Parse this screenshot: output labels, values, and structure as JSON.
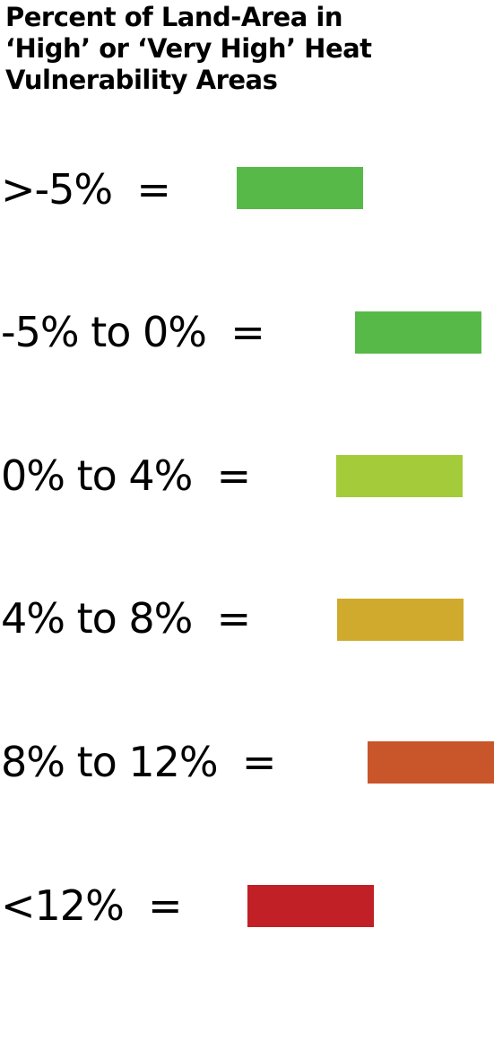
{
  "legend": {
    "title_lines": [
      "Percent of Land-Area in",
      "‘High’ or ‘Very High’ Heat",
      "Vulnerability Areas"
    ],
    "entries": [
      {
        "label": ">-5%  =",
        "color": "#57b947"
      },
      {
        "label": "-5% to 0%  =",
        "color": "#57b947"
      },
      {
        "label": "0% to 4%  =",
        "color": "#a3cb3a"
      },
      {
        "label": "4% to 8%  =",
        "color": "#cfaa2c"
      },
      {
        "label": "8% to 12%  =",
        "color": "#c9552a"
      },
      {
        "label": "<12%  =",
        "color": "#c02026"
      }
    ]
  }
}
